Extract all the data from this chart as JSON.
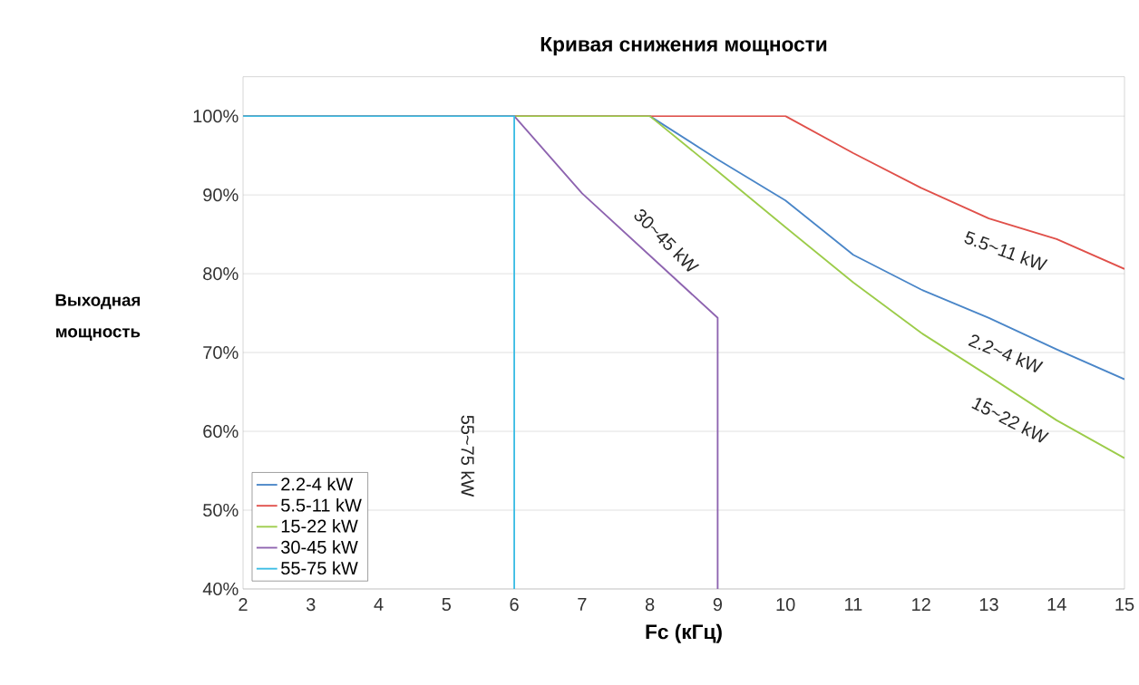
{
  "chart_data": {
    "type": "line",
    "title": "Кривая снижения мощности",
    "xlabel": "Fc (кГц)",
    "ylabel": "Выходная мощность",
    "xlim": [
      2,
      15
    ],
    "ylim": [
      40,
      105
    ],
    "xticks": [
      2,
      3,
      4,
      5,
      6,
      7,
      8,
      9,
      10,
      11,
      12,
      13,
      14,
      15
    ],
    "yticks": [
      {
        "value": 40,
        "label": "40%"
      },
      {
        "value": 50,
        "label": "50%"
      },
      {
        "value": 60,
        "label": "60%"
      },
      {
        "value": 70,
        "label": "70%"
      },
      {
        "value": 80,
        "label": "80%"
      },
      {
        "value": 90,
        "label": "90%"
      },
      {
        "value": 100,
        "label": "100%"
      }
    ],
    "grid": "y",
    "legend": "bottom left",
    "marker": "none",
    "line_style": "solid",
    "series": [
      {
        "name": "2.2-4 kW",
        "color": "#4a86c8",
        "x": [
          2,
          8,
          9,
          10,
          11,
          12,
          13,
          14,
          15
        ],
        "values": [
          100,
          100,
          94.5,
          89.3,
          82.4,
          78,
          74.4,
          70.4,
          66.6
        ]
      },
      {
        "name": "5.5-11 kW",
        "color": "#e0504a",
        "x": [
          2,
          10,
          11,
          12,
          13,
          14,
          15
        ],
        "values": [
          100,
          100,
          95.3,
          90.9,
          87,
          84.4,
          80.6
        ]
      },
      {
        "name": "15-22 kW",
        "color": "#9ccc4a",
        "x": [
          2,
          8,
          9,
          10,
          11,
          12,
          13,
          14,
          15
        ],
        "values": [
          100,
          100,
          93,
          85.9,
          78.9,
          72.5,
          67,
          61.4,
          56.6
        ]
      },
      {
        "name": "30-45 kW",
        "color": "#8e64b0",
        "x": [
          2,
          6,
          7,
          9,
          9
        ],
        "values": [
          100,
          100,
          90.2,
          74.4,
          40
        ]
      },
      {
        "name": "55-75 kW",
        "color": "#3cbde4",
        "x": [
          2,
          6,
          6
        ],
        "values": [
          100,
          100,
          40
        ]
      }
    ],
    "annotations": [
      "5.5~11 kW",
      "2.2~4 kW",
      "15~22 kW",
      "30~45 kW",
      "55~75 kW"
    ]
  }
}
